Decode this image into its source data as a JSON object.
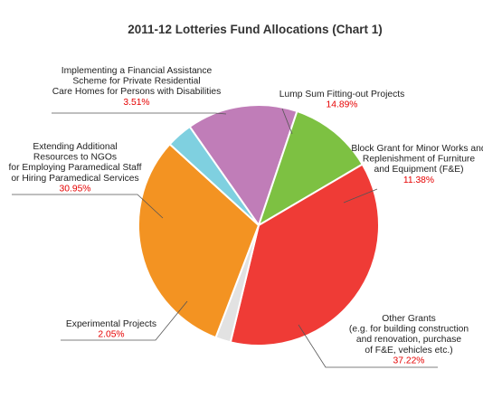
{
  "chart_data": {
    "type": "pie",
    "title": "2011-12 Lotteries Fund Allocations (Chart 1)",
    "slices": [
      {
        "label": [
          "Lump Sum Fitting-out Projects"
        ],
        "value": 14.89,
        "value_label": "14.89%",
        "color": "#c07db8"
      },
      {
        "label": [
          "Block Grant for Minor Works and",
          "Replenishment of Furniture",
          "and Equipment (F&E)"
        ],
        "value": 11.38,
        "value_label": "11.38%",
        "color": "#7dc142"
      },
      {
        "label": [
          "Other Grants",
          "(e.g. for building construction",
          "and renovation, purchase",
          "of F&E, vehicles etc.)"
        ],
        "value": 37.22,
        "value_label": "37.22%",
        "color": "#ef3b36"
      },
      {
        "label": [
          "Experimental Projects"
        ],
        "value": 2.05,
        "value_label": "2.05%",
        "color": "#e2e2e2"
      },
      {
        "label": [
          "Extending Additional",
          "Resources to NGOs",
          "for Employing Paramedical Staff",
          "or Hiring Paramedical Services"
        ],
        "value": 30.95,
        "value_label": "30.95%",
        "color": "#f39322"
      },
      {
        "label": [
          "Implementing a Financial Assistance",
          "Scheme for Private Residential",
          "Care Homes for Persons with Disabilities"
        ],
        "value": 3.51,
        "value_label": "3.51%",
        "color": "#7fd0e0"
      }
    ]
  }
}
